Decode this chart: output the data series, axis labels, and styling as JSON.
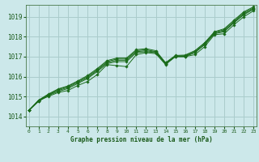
{
  "xlabel": "Graphe pression niveau de la mer (hPa)",
  "ylabel": "",
  "bg_color": "#cce8ea",
  "grid_color": "#aacccc",
  "line_color": "#1a6b1a",
  "x_ticks": [
    0,
    1,
    2,
    3,
    4,
    5,
    6,
    7,
    8,
    9,
    10,
    11,
    12,
    13,
    14,
    15,
    16,
    17,
    18,
    19,
    20,
    21,
    22,
    23
  ],
  "ylim": [
    1013.5,
    1019.6
  ],
  "xlim": [
    -0.3,
    23.3
  ],
  "yticks": [
    1014,
    1015,
    1016,
    1017,
    1018,
    1019
  ],
  "series": [
    [
      1014.3,
      1014.8,
      1015.0,
      1015.2,
      1015.3,
      1015.55,
      1015.75,
      1016.1,
      1016.6,
      1016.55,
      1016.5,
      1017.1,
      1017.2,
      1017.15,
      1016.6,
      1017.0,
      1017.0,
      1017.1,
      1017.5,
      1018.1,
      1018.15,
      1018.6,
      1019.0,
      1019.3
    ],
    [
      1014.3,
      1014.75,
      1015.05,
      1015.25,
      1015.4,
      1015.65,
      1015.9,
      1016.25,
      1016.65,
      1016.75,
      1016.75,
      1017.2,
      1017.25,
      1017.2,
      1016.65,
      1017.0,
      1017.0,
      1017.2,
      1017.6,
      1018.15,
      1018.25,
      1018.7,
      1019.1,
      1019.38
    ],
    [
      1014.3,
      1014.78,
      1015.08,
      1015.3,
      1015.45,
      1015.7,
      1015.95,
      1016.3,
      1016.7,
      1016.82,
      1016.82,
      1017.25,
      1017.3,
      1017.22,
      1016.65,
      1017.02,
      1017.02,
      1017.22,
      1017.62,
      1018.18,
      1018.3,
      1018.72,
      1019.15,
      1019.4
    ],
    [
      1014.3,
      1014.8,
      1015.1,
      1015.35,
      1015.5,
      1015.75,
      1016.0,
      1016.35,
      1016.75,
      1016.88,
      1016.88,
      1017.3,
      1017.35,
      1017.25,
      1016.67,
      1017.03,
      1017.05,
      1017.27,
      1017.67,
      1018.22,
      1018.35,
      1018.78,
      1019.2,
      1019.45
    ],
    [
      1014.3,
      1014.82,
      1015.12,
      1015.38,
      1015.53,
      1015.78,
      1016.05,
      1016.4,
      1016.8,
      1016.93,
      1016.93,
      1017.35,
      1017.4,
      1017.3,
      1016.7,
      1017.06,
      1017.08,
      1017.3,
      1017.7,
      1018.25,
      1018.4,
      1018.83,
      1019.25,
      1019.5
    ]
  ]
}
